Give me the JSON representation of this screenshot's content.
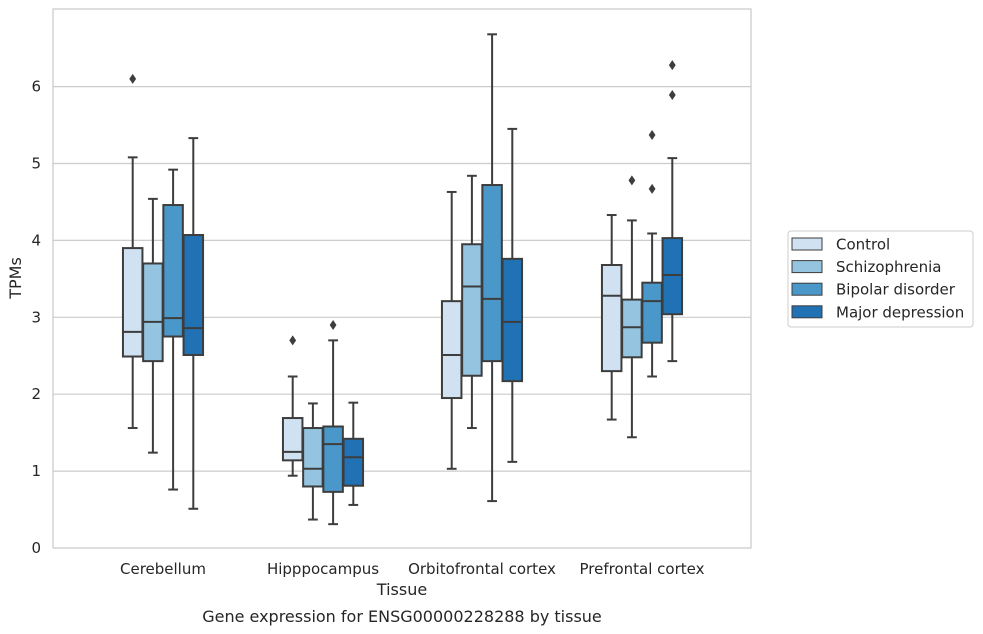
{
  "chart_data": {
    "type": "boxplot",
    "title": "",
    "caption": "Gene expression for ENSG00000228288 by tissue",
    "xlabel": "Tissue",
    "ylabel": "TPMs",
    "ylim": [
      0,
      7
    ],
    "yticks": [
      0,
      1,
      2,
      3,
      4,
      5,
      6
    ],
    "grid": "horizontal",
    "legend_position": "right",
    "categories": [
      "Cerebellum",
      "Hipppocampus",
      "Orbitofrontal cortex",
      "Prefrontal cortex"
    ],
    "series": [
      {
        "name": "Control",
        "color": "#d0e1f2",
        "boxes": [
          {
            "min": 1.56,
            "q1": 2.49,
            "median": 2.81,
            "q3": 3.9,
            "max": 5.08,
            "outliers": [
              6.1
            ]
          },
          {
            "min": 0.94,
            "q1": 1.14,
            "median": 1.25,
            "q3": 1.69,
            "max": 2.23,
            "outliers": [
              2.7
            ]
          },
          {
            "min": 1.03,
            "q1": 1.95,
            "median": 2.51,
            "q3": 3.21,
            "max": 4.63,
            "outliers": []
          },
          {
            "min": 1.67,
            "q1": 2.3,
            "median": 3.28,
            "q3": 3.68,
            "max": 4.33,
            "outliers": []
          }
        ]
      },
      {
        "name": "Schizophrenia",
        "color": "#94c4df",
        "boxes": [
          {
            "min": 1.24,
            "q1": 2.43,
            "median": 2.94,
            "q3": 3.7,
            "max": 4.54,
            "outliers": []
          },
          {
            "min": 0.37,
            "q1": 0.8,
            "median": 1.03,
            "q3": 1.56,
            "max": 1.88,
            "outliers": []
          },
          {
            "min": 1.56,
            "q1": 2.24,
            "median": 3.4,
            "q3": 3.95,
            "max": 4.84,
            "outliers": []
          },
          {
            "min": 1.44,
            "q1": 2.48,
            "median": 2.87,
            "q3": 3.23,
            "max": 4.26,
            "outliers": [
              4.78
            ]
          }
        ]
      },
      {
        "name": "Bipolar disorder",
        "color": "#4a98c9",
        "boxes": [
          {
            "min": 0.76,
            "q1": 2.75,
            "median": 2.99,
            "q3": 4.46,
            "max": 4.92,
            "outliers": []
          },
          {
            "min": 0.31,
            "q1": 0.73,
            "median": 1.35,
            "q3": 1.58,
            "max": 2.7,
            "outliers": [
              2.9
            ]
          },
          {
            "min": 0.61,
            "q1": 2.43,
            "median": 3.24,
            "q3": 4.72,
            "max": 6.68,
            "outliers": []
          },
          {
            "min": 2.23,
            "q1": 2.67,
            "median": 3.21,
            "q3": 3.45,
            "max": 4.09,
            "outliers": [
              4.67,
              5.37
            ]
          }
        ]
      },
      {
        "name": "Major depression",
        "color": "#2171b5",
        "boxes": [
          {
            "min": 0.51,
            "q1": 2.51,
            "median": 2.86,
            "q3": 4.07,
            "max": 5.33,
            "outliers": []
          },
          {
            "min": 0.56,
            "q1": 0.81,
            "median": 1.18,
            "q3": 1.42,
            "max": 1.89,
            "outliers": []
          },
          {
            "min": 1.12,
            "q1": 2.17,
            "median": 2.94,
            "q3": 3.76,
            "max": 5.45,
            "outliers": []
          },
          {
            "min": 2.43,
            "q1": 3.04,
            "median": 3.55,
            "q3": 4.03,
            "max": 5.07,
            "outliers": [
              5.89,
              6.28
            ]
          }
        ]
      }
    ]
  }
}
